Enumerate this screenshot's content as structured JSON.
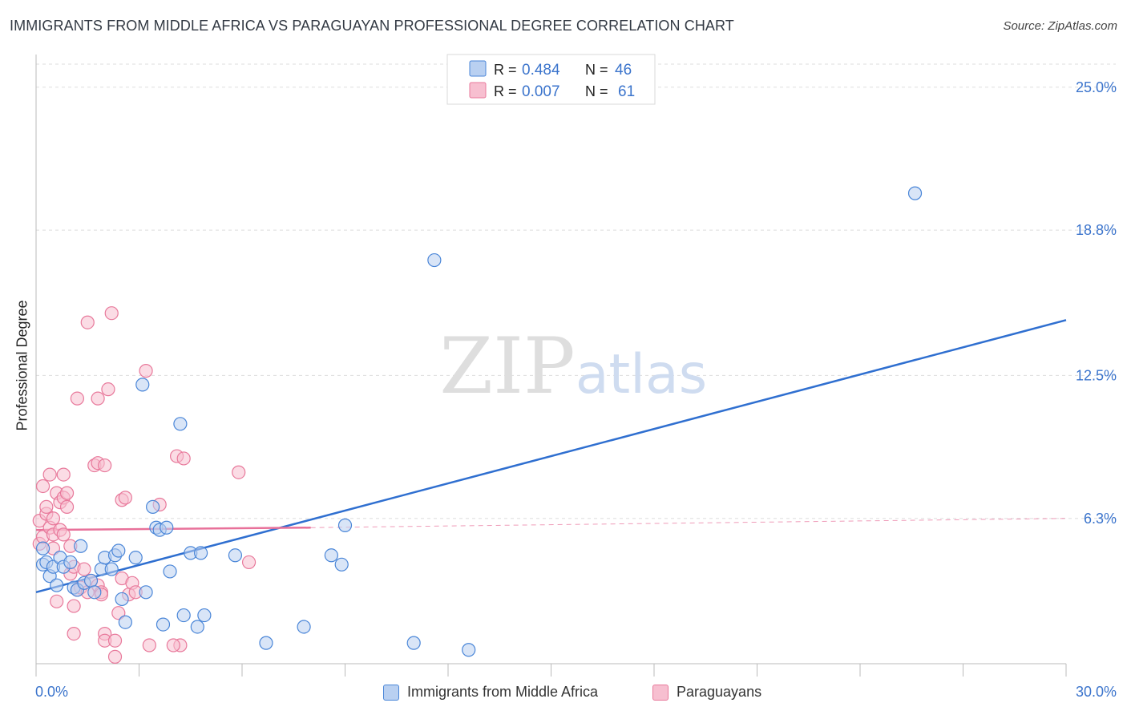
{
  "header": {
    "title": "IMMIGRANTS FROM MIDDLE AFRICA VS PARAGUAYAN PROFESSIONAL DEGREE CORRELATION CHART",
    "source": "Source: ZipAtlas.com"
  },
  "watermark": {
    "zip": "ZIP",
    "atlas": "atlas"
  },
  "colors": {
    "blue": "#4a86d8",
    "blue_fill": "#b9d0f1",
    "blue_line": "#2f6fd0",
    "pink": "#e8799b",
    "pink_fill": "#f7bfd0",
    "pink_line": "#e8719a",
    "axis_text": "#3b74cc",
    "grid": "#dddddd"
  },
  "chart_data": {
    "type": "scatter",
    "title": "IMMIGRANTS FROM MIDDLE AFRICA VS PARAGUAYAN PROFESSIONAL DEGREE CORRELATION CHART",
    "xlabel": "",
    "ylabel": "Professional Degree",
    "xlim": [
      0,
      30
    ],
    "ylim": [
      0,
      26
    ],
    "x_tick_labels": [
      "0.0%",
      "30.0%"
    ],
    "y_ticks": [
      6.3,
      12.5,
      18.8,
      25.0
    ],
    "y_tick_labels": [
      "6.3%",
      "12.5%",
      "18.8%",
      "25.0%"
    ],
    "legend": [
      {
        "name": "Immigrants from Middle Africa",
        "r_label": "R =",
        "r_value": "0.484",
        "n_label": "N =",
        "n_value": "46"
      },
      {
        "name": "Paraguayans",
        "r_label": "R =",
        "r_value": "0.007",
        "n_label": "N =",
        "n_value": "61"
      }
    ],
    "series": [
      {
        "name": "Immigrants from Middle Africa",
        "color": "#4a86d8",
        "trend": {
          "x": [
            0,
            30
          ],
          "y": [
            3.1,
            14.9
          ]
        },
        "points": [
          [
            0.2,
            5.0
          ],
          [
            0.2,
            4.3
          ],
          [
            0.3,
            4.4
          ],
          [
            0.4,
            3.8
          ],
          [
            0.5,
            4.2
          ],
          [
            0.6,
            3.4
          ],
          [
            0.7,
            4.6
          ],
          [
            0.8,
            4.2
          ],
          [
            1.0,
            4.4
          ],
          [
            1.1,
            3.3
          ],
          [
            1.2,
            3.2
          ],
          [
            1.3,
            5.1
          ],
          [
            1.4,
            3.5
          ],
          [
            1.6,
            3.6
          ],
          [
            1.7,
            3.1
          ],
          [
            1.9,
            4.1
          ],
          [
            2.0,
            4.6
          ],
          [
            2.2,
            4.1
          ],
          [
            2.3,
            4.7
          ],
          [
            2.4,
            4.9
          ],
          [
            2.5,
            2.8
          ],
          [
            2.6,
            1.8
          ],
          [
            2.9,
            4.6
          ],
          [
            3.1,
            12.1
          ],
          [
            3.4,
            6.8
          ],
          [
            3.2,
            3.1
          ],
          [
            3.5,
            5.9
          ],
          [
            3.6,
            5.8
          ],
          [
            3.8,
            5.9
          ],
          [
            3.7,
            1.7
          ],
          [
            3.9,
            4.0
          ],
          [
            4.2,
            10.4
          ],
          [
            4.3,
            2.1
          ],
          [
            4.5,
            4.8
          ],
          [
            4.7,
            1.6
          ],
          [
            4.8,
            4.8
          ],
          [
            4.9,
            2.1
          ],
          [
            5.8,
            4.7
          ],
          [
            6.7,
            0.9
          ],
          [
            7.8,
            1.6
          ],
          [
            8.6,
            4.7
          ],
          [
            8.9,
            4.3
          ],
          [
            9.0,
            6.0
          ],
          [
            11.0,
            0.9
          ],
          [
            11.6,
            17.5
          ],
          [
            12.6,
            0.6
          ],
          [
            25.6,
            20.4
          ]
        ]
      },
      {
        "name": "Paraguayans",
        "color": "#e8799b",
        "trend": {
          "x": [
            0,
            8
          ],
          "y": [
            5.8,
            5.9
          ]
        },
        "trend_extension": {
          "x": [
            8,
            30
          ],
          "y": [
            5.9,
            6.3
          ]
        },
        "points": [
          [
            0.1,
            5.2
          ],
          [
            0.1,
            6.2
          ],
          [
            0.2,
            7.7
          ],
          [
            0.2,
            5.5
          ],
          [
            0.3,
            6.5
          ],
          [
            0.3,
            6.8
          ],
          [
            0.4,
            5.9
          ],
          [
            0.4,
            8.2
          ],
          [
            0.5,
            5.0
          ],
          [
            0.5,
            5.6
          ],
          [
            0.5,
            6.3
          ],
          [
            0.6,
            7.4
          ],
          [
            0.6,
            2.7
          ],
          [
            0.7,
            5.8
          ],
          [
            0.8,
            5.6
          ],
          [
            0.7,
            7.0
          ],
          [
            0.8,
            7.2
          ],
          [
            0.8,
            8.2
          ],
          [
            0.9,
            7.4
          ],
          [
            0.9,
            6.8
          ],
          [
            1.0,
            5.1
          ],
          [
            1.0,
            3.9
          ],
          [
            1.1,
            2.5
          ],
          [
            1.1,
            1.3
          ],
          [
            1.1,
            4.2
          ],
          [
            1.2,
            11.5
          ],
          [
            1.2,
            3.2
          ],
          [
            1.3,
            3.3
          ],
          [
            1.4,
            4.1
          ],
          [
            1.5,
            3.1
          ],
          [
            1.5,
            14.8
          ],
          [
            1.6,
            3.6
          ],
          [
            1.7,
            8.6
          ],
          [
            1.8,
            8.7
          ],
          [
            1.8,
            11.5
          ],
          [
            1.8,
            3.4
          ],
          [
            1.9,
            3.1
          ],
          [
            2.0,
            1.3
          ],
          [
            2.1,
            11.9
          ],
          [
            2.0,
            1.0
          ],
          [
            1.9,
            3.0
          ],
          [
            2.0,
            8.6
          ],
          [
            2.2,
            15.2
          ],
          [
            2.3,
            0.3
          ],
          [
            2.3,
            1.0
          ],
          [
            2.4,
            2.2
          ],
          [
            2.5,
            7.1
          ],
          [
            2.5,
            3.7
          ],
          [
            2.6,
            7.2
          ],
          [
            2.7,
            3.0
          ],
          [
            2.8,
            3.5
          ],
          [
            2.9,
            3.1
          ],
          [
            3.2,
            12.7
          ],
          [
            3.3,
            0.8
          ],
          [
            3.6,
            6.9
          ],
          [
            4.1,
            9.0
          ],
          [
            4.2,
            0.8
          ],
          [
            4.3,
            8.9
          ],
          [
            5.9,
            8.3
          ],
          [
            6.2,
            4.4
          ],
          [
            4.0,
            0.8
          ]
        ]
      }
    ]
  }
}
